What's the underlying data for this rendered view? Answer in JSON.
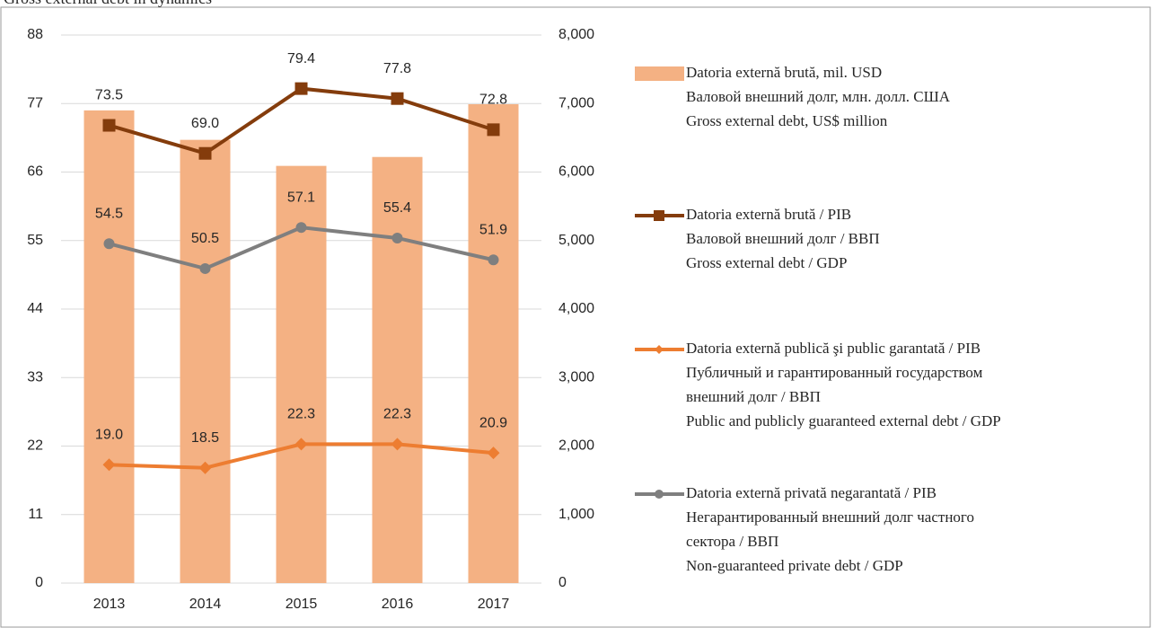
{
  "chart_data": {
    "type": "bar_line",
    "title": "Gross external debt in dynamics",
    "categories": [
      "2013",
      "2014",
      "2015",
      "2016",
      "2017"
    ],
    "ylim": [
      0,
      88
    ],
    "yticks": [
      0,
      11,
      22,
      33,
      44,
      55,
      66,
      77,
      88
    ],
    "y2lim": [
      0,
      8000
    ],
    "y2ticks": [
      {
        "value": 0,
        "label": "0"
      },
      {
        "value": 1000,
        "label": "1,000"
      },
      {
        "value": 2000,
        "label": "2,000"
      },
      {
        "value": 3000,
        "label": "3,000"
      },
      {
        "value": 4000,
        "label": "4,000"
      },
      {
        "value": 5000,
        "label": "5,000"
      },
      {
        "value": 6000,
        "label": "6,000"
      },
      {
        "value": 7000,
        "label": "7,000"
      },
      {
        "value": 8000,
        "label": "8,000"
      }
    ],
    "grid": true,
    "series": [
      {
        "name": [
          "Datoria externă brută, mil. USD",
          "Валовой внешний долг, млн. долл. США",
          "Gross external debt, US$ million"
        ],
        "type": "bar",
        "axis": "y2",
        "color": "#f4b183",
        "values": [
          6900,
          6470,
          6090,
          6220,
          6990
        ]
      },
      {
        "name": [
          "Datoria externă brută / PIB",
          "Валовой внешний долг / ВВП",
          "Gross external debt / GDP"
        ],
        "type": "line",
        "marker": "square",
        "color": "#843c0c",
        "values": [
          73.5,
          69.0,
          79.4,
          77.8,
          72.8
        ],
        "value_labels": [
          "73.5",
          "69.0",
          "79.4",
          "77.8",
          "72.8"
        ]
      },
      {
        "name": [
          "Datoria externă publică şi public garantată / PIB",
          "Публичный и гарантированный государством",
          "внешний долг / ВВП",
          "Public and publicly guaranteed external debt / GDP"
        ],
        "type": "line",
        "marker": "diamond",
        "color": "#ed7d31",
        "values": [
          19.0,
          18.5,
          22.3,
          22.3,
          20.9
        ],
        "value_labels": [
          "19.0",
          "18.5",
          "22.3",
          "22.3",
          "20.9"
        ]
      },
      {
        "name": [
          "Datoria externă privată negarantată / PIB",
          "Негарантированный внешний долг частного",
          "сектора / ВВП",
          "Non-guaranteed private debt / GDP"
        ],
        "type": "line",
        "marker": "circle",
        "color": "#7f7f7f",
        "values": [
          54.5,
          50.5,
          57.1,
          55.4,
          51.9
        ],
        "value_labels": [
          "54.5",
          "50.5",
          "57.1",
          "55.4",
          "51.9"
        ]
      }
    ]
  }
}
